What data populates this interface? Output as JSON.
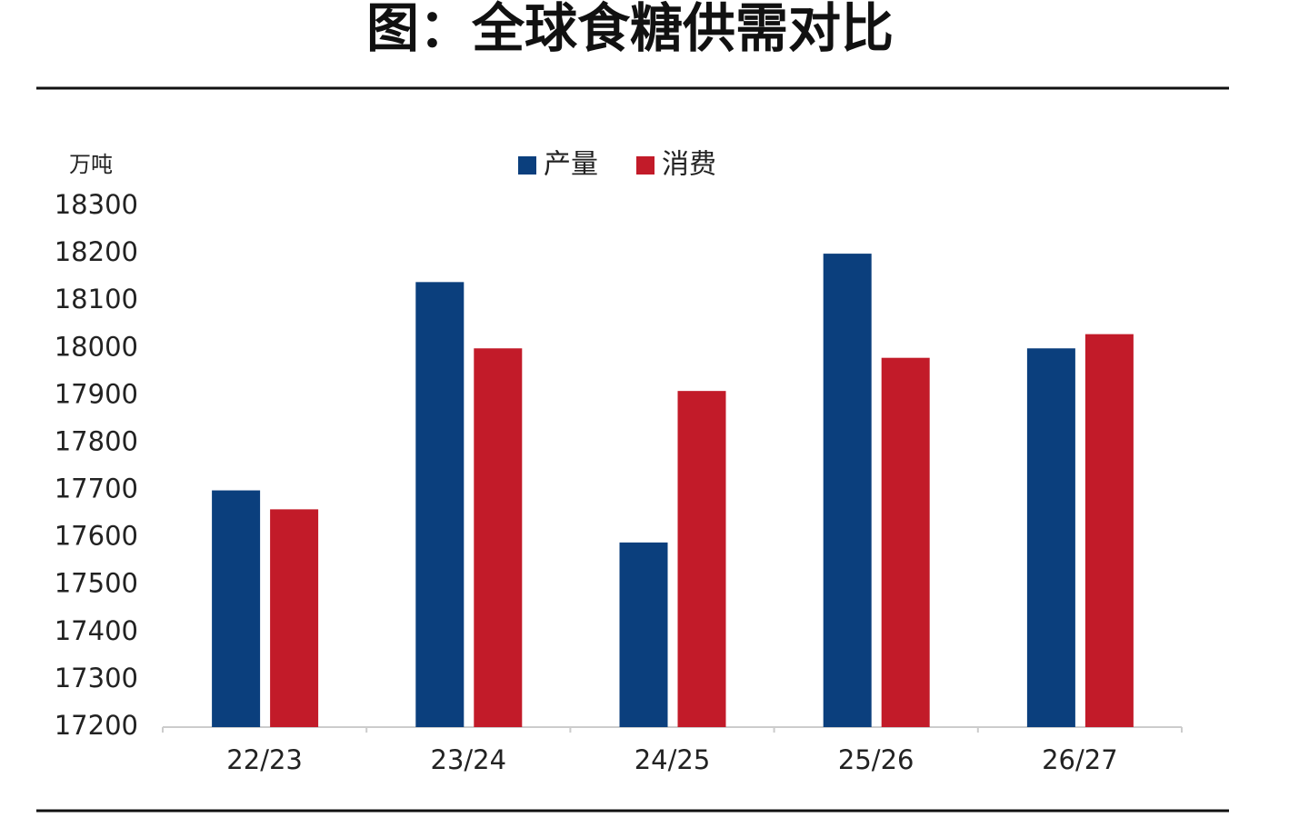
{
  "chart_data": {
    "type": "bar",
    "title": "图：全球食糖供需对比",
    "y_label": "万吨",
    "categories": [
      "22/23",
      "23/24",
      "24/25",
      "25/26",
      "26/27"
    ],
    "series": [
      {
        "name": "产量",
        "color": "#0b3f7d",
        "values": [
          17700,
          18140,
          17590,
          18200,
          18000
        ]
      },
      {
        "name": "消费",
        "color": "#c21b29",
        "values": [
          17660,
          18000,
          17910,
          17980,
          18030
        ]
      }
    ],
    "ylim": [
      17200,
      18300
    ],
    "yticks": [
      17200,
      17300,
      17400,
      17500,
      17600,
      17700,
      17800,
      17900,
      18000,
      18100,
      18200,
      18300
    ],
    "grid": false,
    "legend": "top"
  }
}
